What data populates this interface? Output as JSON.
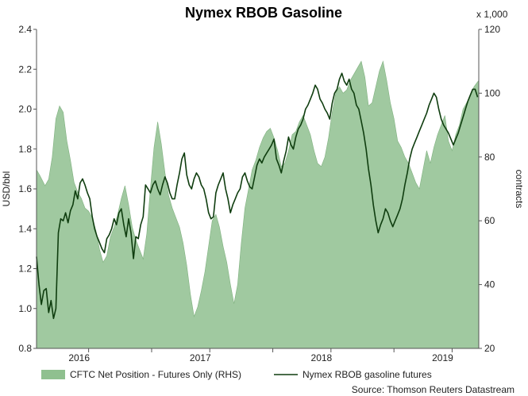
{
  "chart_data": {
    "type": "area+line",
    "title": "Nymex RBOB Gasoline",
    "ylabel": "USD/bbl",
    "y2label": "contracts",
    "y2unit": "x 1,000",
    "ylim": [
      0.8,
      2.4
    ],
    "y2lim": [
      20,
      120
    ],
    "yticks": [
      "0.8",
      "1.0",
      "1.2",
      "1.4",
      "1.6",
      "1.8",
      "2.0",
      "2.2",
      "2.4"
    ],
    "y2ticks": [
      "20",
      "40",
      "60",
      "80",
      "100",
      "120"
    ],
    "xlim": [
      2015.55,
      2019.2
    ],
    "xtick_labels": [
      "2016",
      "2017",
      "2018",
      "2019"
    ],
    "xtick_positions": [
      2016.0,
      2017.0,
      2018.0,
      2019.0
    ],
    "series": [
      {
        "name": "CFTC Net Position - Futures Only (RHS)",
        "axis": "right",
        "style": "area",
        "color": "#8fc08f",
        "x": [
          2015.55,
          2015.58,
          2015.62,
          2015.65,
          2015.68,
          2015.71,
          2015.74,
          2015.77,
          2015.8,
          2015.83,
          2015.86,
          2015.89,
          2015.92,
          2015.95,
          2015.98,
          2016.01,
          2016.04,
          2016.07,
          2016.1,
          2016.13,
          2016.16,
          2016.19,
          2016.22,
          2016.25,
          2016.28,
          2016.31,
          2016.34,
          2016.37,
          2016.4,
          2016.43,
          2016.46,
          2016.49,
          2016.52,
          2016.55,
          2016.58,
          2016.61,
          2016.64,
          2016.67,
          2016.7,
          2016.73,
          2016.76,
          2016.79,
          2016.82,
          2016.85,
          2016.88,
          2016.91,
          2016.94,
          2016.97,
          2017.0,
          2017.03,
          2017.06,
          2017.09,
          2017.12,
          2017.15,
          2017.18,
          2017.21,
          2017.24,
          2017.27,
          2017.3,
          2017.33,
          2017.36,
          2017.39,
          2017.42,
          2017.45,
          2017.48,
          2017.51,
          2017.54,
          2017.57,
          2017.6,
          2017.63,
          2017.66,
          2017.69,
          2017.72,
          2017.75,
          2017.78,
          2017.81,
          2017.84,
          2017.87,
          2017.9,
          2017.93,
          2017.96,
          2017.99,
          2018.02,
          2018.05,
          2018.08,
          2018.11,
          2018.14,
          2018.17,
          2018.2,
          2018.23,
          2018.26,
          2018.29,
          2018.32,
          2018.35,
          2018.38,
          2018.41,
          2018.44,
          2018.47,
          2018.5,
          2018.53,
          2018.56,
          2018.59,
          2018.62,
          2018.65,
          2018.68,
          2018.71,
          2018.74,
          2018.77,
          2018.8,
          2018.83,
          2018.86,
          2018.89,
          2018.92,
          2018.95,
          2018.98,
          2019.01,
          2019.04,
          2019.07,
          2019.1,
          2019.13,
          2019.16,
          2019.2
        ],
        "values": [
          76,
          74,
          71,
          73,
          80,
          92,
          96,
          94,
          85,
          79,
          72,
          69,
          67,
          64,
          63,
          61,
          57,
          51,
          47,
          49,
          55,
          58,
          62,
          67,
          71,
          65,
          58,
          54,
          51,
          48,
          56,
          70,
          83,
          91,
          84,
          75,
          68,
          64,
          61,
          58,
          53,
          46,
          37,
          30,
          33,
          38,
          44,
          52,
          60,
          62,
          58,
          52,
          47,
          40,
          34,
          40,
          53,
          64,
          70,
          76,
          79,
          83,
          86,
          88,
          89,
          86,
          82,
          77,
          78,
          82,
          87,
          88,
          91,
          93,
          90,
          87,
          82,
          78,
          77,
          80,
          86,
          94,
          100,
          102,
          100,
          101,
          104,
          106,
          108,
          110,
          105,
          96,
          97,
          102,
          107,
          110,
          104,
          97,
          92,
          85,
          83,
          80,
          78,
          75,
          72,
          70,
          76,
          82,
          78,
          83,
          87,
          90,
          93,
          85,
          82,
          87,
          90,
          95,
          97,
          99,
          102,
          104
        ]
      },
      {
        "name": "Nymex RBOB gasoline futures",
        "axis": "left",
        "style": "line",
        "color": "#0f3d0f",
        "x": [
          2015.55,
          2015.57,
          2015.59,
          2015.61,
          2015.63,
          2015.65,
          2015.67,
          2015.69,
          2015.71,
          2015.73,
          2015.75,
          2015.77,
          2015.79,
          2015.81,
          2015.83,
          2015.85,
          2015.87,
          2015.89,
          2015.91,
          2015.93,
          2015.95,
          2015.97,
          2015.99,
          2016.01,
          2016.03,
          2016.05,
          2016.07,
          2016.09,
          2016.11,
          2016.13,
          2016.15,
          2016.17,
          2016.19,
          2016.21,
          2016.23,
          2016.25,
          2016.27,
          2016.29,
          2016.31,
          2016.33,
          2016.35,
          2016.37,
          2016.39,
          2016.41,
          2016.43,
          2016.45,
          2016.47,
          2016.49,
          2016.51,
          2016.53,
          2016.55,
          2016.57,
          2016.59,
          2016.61,
          2016.63,
          2016.65,
          2016.67,
          2016.69,
          2016.71,
          2016.73,
          2016.75,
          2016.77,
          2016.79,
          2016.81,
          2016.83,
          2016.85,
          2016.87,
          2016.89,
          2016.91,
          2016.93,
          2016.95,
          2016.97,
          2016.99,
          2017.01,
          2017.03,
          2017.05,
          2017.07,
          2017.09,
          2017.11,
          2017.13,
          2017.15,
          2017.17,
          2017.19,
          2017.21,
          2017.23,
          2017.25,
          2017.27,
          2017.29,
          2017.31,
          2017.33,
          2017.35,
          2017.37,
          2017.39,
          2017.41,
          2017.43,
          2017.45,
          2017.47,
          2017.49,
          2017.51,
          2017.53,
          2017.55,
          2017.57,
          2017.59,
          2017.61,
          2017.63,
          2017.65,
          2017.67,
          2017.69,
          2017.71,
          2017.73,
          2017.75,
          2017.77,
          2017.79,
          2017.81,
          2017.83,
          2017.85,
          2017.87,
          2017.89,
          2017.91,
          2017.93,
          2017.95,
          2017.97,
          2017.99,
          2018.01,
          2018.03,
          2018.05,
          2018.07,
          2018.09,
          2018.11,
          2018.13,
          2018.15,
          2018.17,
          2018.19,
          2018.21,
          2018.23,
          2018.25,
          2018.27,
          2018.29,
          2018.31,
          2018.33,
          2018.35,
          2018.37,
          2018.39,
          2018.41,
          2018.43,
          2018.45,
          2018.47,
          2018.49,
          2018.51,
          2018.53,
          2018.55,
          2018.57,
          2018.59,
          2018.61,
          2018.63,
          2018.65,
          2018.67,
          2018.69,
          2018.71,
          2018.73,
          2018.75,
          2018.77,
          2018.79,
          2018.81,
          2018.83,
          2018.85,
          2018.87,
          2018.89,
          2018.91,
          2018.93,
          2018.95,
          2018.97,
          2018.99,
          2019.01,
          2019.03,
          2019.05,
          2019.07,
          2019.09,
          2019.11,
          2019.13,
          2019.15,
          2019.17,
          2019.19
        ],
        "values": [
          1.26,
          1.12,
          1.02,
          1.09,
          1.1,
          0.98,
          1.04,
          0.95,
          1.0,
          1.38,
          1.45,
          1.44,
          1.48,
          1.43,
          1.49,
          1.52,
          1.59,
          1.55,
          1.63,
          1.65,
          1.62,
          1.58,
          1.55,
          1.46,
          1.4,
          1.36,
          1.33,
          1.3,
          1.28,
          1.35,
          1.37,
          1.4,
          1.45,
          1.42,
          1.48,
          1.5,
          1.42,
          1.36,
          1.45,
          1.38,
          1.25,
          1.36,
          1.35,
          1.42,
          1.46,
          1.62,
          1.6,
          1.58,
          1.62,
          1.64,
          1.6,
          1.57,
          1.62,
          1.66,
          1.63,
          1.58,
          1.55,
          1.55,
          1.62,
          1.68,
          1.75,
          1.78,
          1.67,
          1.62,
          1.6,
          1.65,
          1.68,
          1.66,
          1.62,
          1.6,
          1.55,
          1.48,
          1.45,
          1.46,
          1.58,
          1.62,
          1.65,
          1.68,
          1.6,
          1.55,
          1.48,
          1.52,
          1.55,
          1.58,
          1.6,
          1.66,
          1.68,
          1.64,
          1.61,
          1.6,
          1.66,
          1.72,
          1.75,
          1.73,
          1.76,
          1.78,
          1.8,
          1.82,
          1.85,
          1.75,
          1.72,
          1.68,
          1.74,
          1.79,
          1.86,
          1.82,
          1.8,
          1.86,
          1.9,
          1.92,
          1.95,
          2.0,
          2.02,
          2.05,
          2.08,
          2.12,
          2.1,
          2.05,
          2.03,
          2.0,
          1.98,
          1.95,
          2.03,
          2.08,
          2.1,
          2.15,
          2.18,
          2.14,
          2.12,
          2.15,
          2.1,
          2.08,
          2.02,
          2.0,
          1.94,
          1.88,
          1.8,
          1.7,
          1.62,
          1.52,
          1.44,
          1.38,
          1.42,
          1.45,
          1.5,
          1.48,
          1.44,
          1.41,
          1.44,
          1.47,
          1.5,
          1.55,
          1.62,
          1.68,
          1.75,
          1.8,
          1.83,
          1.86,
          1.89,
          1.92,
          1.95,
          1.98,
          2.02,
          2.05,
          2.08,
          2.06,
          2.0,
          1.95,
          1.92,
          1.9,
          1.88,
          1.85,
          1.82,
          1.85,
          1.88,
          1.92,
          1.96,
          2.0,
          2.04,
          2.07,
          2.1,
          2.1,
          2.06
        ]
      }
    ],
    "legend": "bottom",
    "source": "Source: Thomson Reuters Datastream"
  }
}
